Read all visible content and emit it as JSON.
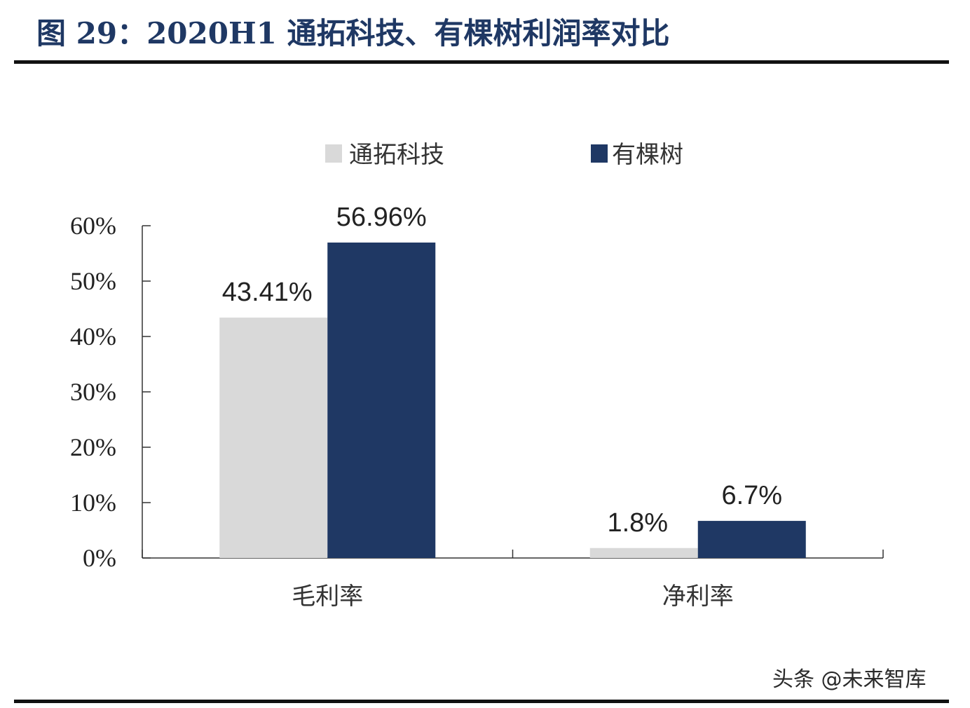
{
  "header": {
    "title": "图 29：2020H1 通拓科技、有棵树利润率对比"
  },
  "footer": {
    "watermark": "头条 @未来智库"
  },
  "colors": {
    "title": "#1f3864",
    "series_1": "#d9d9d9",
    "series_2": "#1f3864"
  },
  "chart_data": {
    "type": "bar",
    "categories": [
      "毛利率",
      "净利率"
    ],
    "series": [
      {
        "name": "通拓科技",
        "values": [
          43.41,
          1.8
        ],
        "labels": [
          "43.41%",
          "1.8%"
        ]
      },
      {
        "name": "有棵树",
        "values": [
          56.96,
          6.7
        ],
        "labels": [
          "56.96%",
          "6.7%"
        ]
      }
    ],
    "ylim": [
      0,
      60
    ],
    "yticks": [
      "0%",
      "10%",
      "20%",
      "30%",
      "40%",
      "50%",
      "60%"
    ],
    "ytick_values": [
      0,
      10,
      20,
      30,
      40,
      50,
      60
    ],
    "legend_position": "top",
    "grid": false
  }
}
